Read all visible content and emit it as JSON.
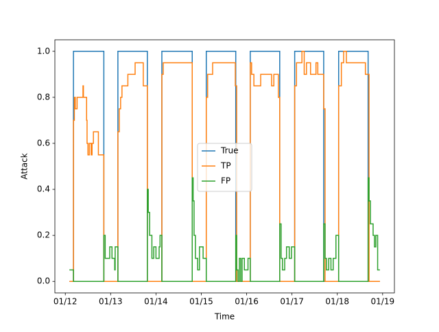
{
  "chart_data": {
    "type": "line",
    "step": true,
    "x_label": "Time",
    "y_label": "Attack",
    "xlim": [
      11.77,
      19.26
    ],
    "ylim": [
      -0.05,
      1.05
    ],
    "xticks": [
      {
        "value": 12,
        "label": "01/12"
      },
      {
        "value": 13,
        "label": "01/13"
      },
      {
        "value": 14,
        "label": "01/14"
      },
      {
        "value": 15,
        "label": "01/15"
      },
      {
        "value": 16,
        "label": "01/16"
      },
      {
        "value": 17,
        "label": "01/17"
      },
      {
        "value": 18,
        "label": "01/18"
      },
      {
        "value": 19,
        "label": "01/19"
      }
    ],
    "yticks": [
      {
        "value": 0,
        "label": "0.0"
      },
      0.2,
      0.4,
      0.6,
      0.8,
      {
        "value": 1,
        "label": "1.0"
      }
    ],
    "legend": "center",
    "series": [
      {
        "name": "True",
        "color": "#1f77b4",
        "x": [
          12.09,
          12.18,
          12.85,
          13.16,
          13.81,
          14.13,
          14.8,
          15.11,
          15.76,
          16.08,
          16.73,
          17.06,
          17.7,
          18.03,
          18.68,
          18.94
        ],
        "values": [
          0,
          1,
          0,
          1,
          0,
          1,
          0,
          1,
          0,
          1,
          0,
          1,
          0,
          1,
          0,
          0
        ]
      },
      {
        "name": "TP",
        "color": "#ff7f0e",
        "x": [
          12.09,
          12.18,
          12.2,
          12.22,
          12.26,
          12.33,
          12.39,
          12.4,
          12.47,
          12.48,
          12.5,
          12.53,
          12.57,
          12.59,
          12.62,
          12.73,
          12.85,
          13.16,
          13.19,
          13.22,
          13.25,
          13.38,
          13.54,
          13.72,
          13.81,
          14.13,
          14.16,
          14.8,
          15.11,
          15.14,
          15.25,
          15.75,
          15.78,
          16.08,
          16.11,
          16.16,
          16.31,
          16.55,
          16.6,
          16.7,
          16.73,
          17.06,
          17.1,
          17.22,
          17.27,
          17.32,
          17.41,
          17.53,
          17.57,
          17.7,
          17.73,
          18.03,
          18.09,
          18.14,
          18.2,
          18.62,
          18.7,
          18.94
        ],
        "values": [
          0,
          0.7,
          0.8,
          0.75,
          0.8,
          0.8,
          0.85,
          0.8,
          0.7,
          0.6,
          0.55,
          0.6,
          0.55,
          0.6,
          0.65,
          0.55,
          0,
          0.65,
          0.75,
          0.8,
          0.85,
          0.9,
          0.95,
          0.85,
          0,
          0.9,
          0.95,
          0,
          0.8,
          0.9,
          0.95,
          0.85,
          0,
          0.95,
          0.9,
          0.85,
          0.9,
          0.85,
          0.9,
          0.8,
          0,
          0.85,
          0.95,
          1,
          0.9,
          0.95,
          0.9,
          0.95,
          0.9,
          0.75,
          0,
          0.85,
          0.95,
          1,
          0.95,
          0.9,
          0,
          0
        ]
      },
      {
        "name": "FP",
        "color": "#2ca02c",
        "x": [
          12.09,
          12.18,
          12.85,
          12.88,
          12.98,
          13.03,
          13.09,
          13.1,
          13.16,
          13.81,
          13.83,
          13.86,
          13.91,
          13.95,
          14.0,
          14.07,
          14.09,
          14.13,
          14.8,
          14.82,
          14.84,
          14.87,
          14.92,
          14.96,
          15.04,
          15.11,
          15.76,
          15.78,
          15.81,
          15.84,
          15.87,
          15.9,
          15.95,
          16.03,
          16.08,
          16.73,
          16.76,
          16.79,
          16.84,
          16.88,
          16.94,
          16.99,
          17.06,
          17.7,
          17.73,
          17.76,
          17.81,
          17.86,
          17.91,
          17.97,
          18.03,
          18.68,
          18.7,
          18.73,
          18.79,
          18.82,
          18.85,
          18.89,
          18.94
        ],
        "values": [
          0.05,
          0,
          0.2,
          0.1,
          0.15,
          0.1,
          0.05,
          0.15,
          0,
          0.4,
          0.3,
          0.2,
          0.1,
          0.15,
          0.1,
          0.15,
          0.2,
          0,
          0.45,
          0.35,
          0.2,
          0.1,
          0.05,
          0.15,
          0.1,
          0,
          0.2,
          0.05,
          0,
          0.1,
          0,
          0.1,
          0.05,
          0.1,
          0,
          0.25,
          0.1,
          0.05,
          0.1,
          0.15,
          0.1,
          0.15,
          0,
          0.25,
          0.1,
          0.05,
          0.1,
          0.05,
          0.1,
          0.2,
          0,
          0.45,
          0.35,
          0.25,
          0.2,
          0.15,
          0.2,
          0.05,
          0.05
        ]
      }
    ]
  }
}
